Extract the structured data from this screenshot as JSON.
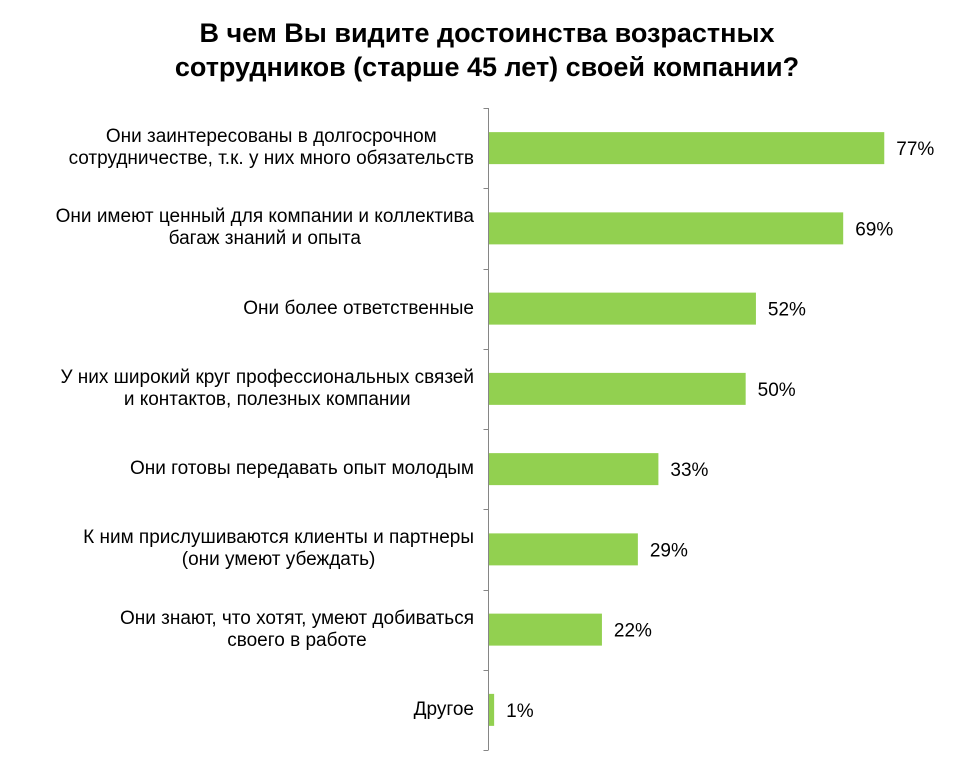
{
  "chart_data": {
    "type": "bar",
    "orientation": "horizontal",
    "title": [
      "В чем Вы видите достоинства возрастных",
      "сотрудников (старше 45 лет) своей компании?"
    ],
    "categories": [
      [
        "Они заинтересованы в долгосрочном",
        "сотрудничестве, т.к. у них много обязательств"
      ],
      [
        "Они имеют ценный для компании и коллектива",
        "багаж знаний и опыта"
      ],
      [
        "Они более ответственные"
      ],
      [
        "У них широкий круг профессиональных связей",
        "и контактов, полезных компании"
      ],
      [
        "Они готовы передавать опыт молодым"
      ],
      [
        "К ним прислушиваются клиенты и партнеры",
        "(они умеют убеждать)"
      ],
      [
        "Они знают, что хотят, умеют добиваться",
        "своего в работе"
      ],
      [
        "Другое"
      ]
    ],
    "values": [
      77,
      69,
      52,
      50,
      33,
      29,
      22,
      1
    ],
    "data_labels": [
      "77%",
      "69%",
      "52%",
      "50%",
      "33%",
      "29%",
      "22%",
      "1%"
    ],
    "xlim": [
      0,
      90
    ],
    "xlabel": "",
    "ylabel": "",
    "grid": false,
    "legend": "none",
    "colors": {
      "bar": "#92D050",
      "axis": "#868686",
      "text": "#000000"
    }
  }
}
